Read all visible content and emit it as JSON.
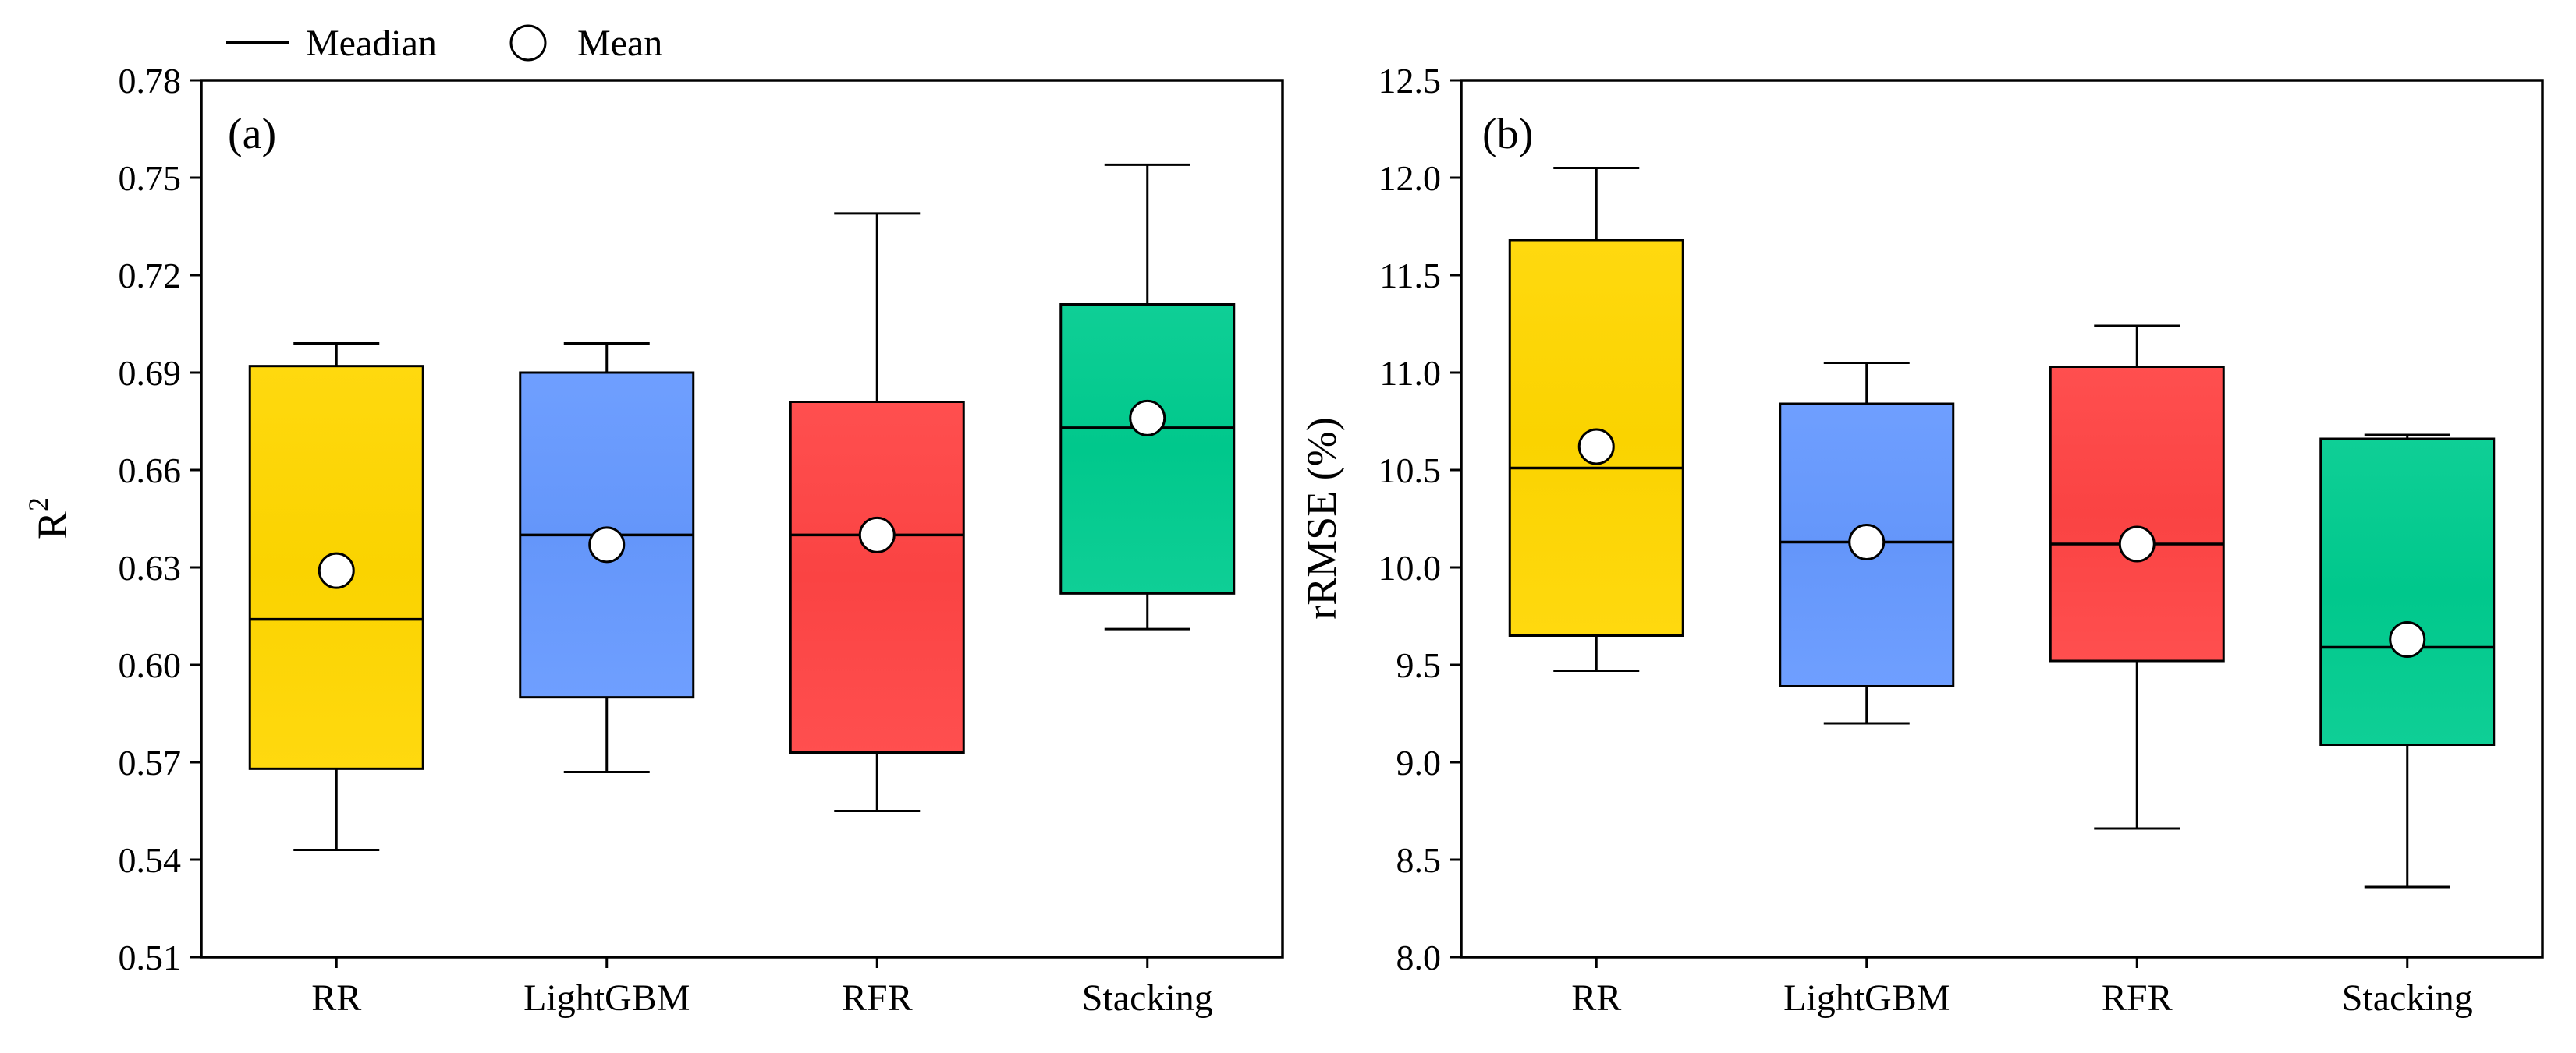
{
  "legend": {
    "median_label": "Meadian",
    "mean_label": "Mean"
  },
  "chart_data": [
    {
      "type": "boxplot",
      "panel_label": "(a)",
      "ylabel": "R",
      "ylabel_superscript": "2",
      "xlabel": "",
      "ylim": [
        0.51,
        0.78
      ],
      "yticks": [
        0.51,
        0.54,
        0.57,
        0.6,
        0.63,
        0.66,
        0.69,
        0.72,
        0.75,
        0.78
      ],
      "ytick_decimals": 2,
      "categories": [
        "RR",
        "LightGBM",
        "RFR",
        "Stacking"
      ],
      "colors": [
        "#FFD700",
        "#6699FF",
        "#FF4444",
        "#00CC8F"
      ],
      "boxes": [
        {
          "whisker_low": 0.543,
          "q1": 0.568,
          "median": 0.614,
          "q3": 0.692,
          "whisker_high": 0.699,
          "mean": 0.629
        },
        {
          "whisker_low": 0.567,
          "q1": 0.59,
          "median": 0.64,
          "q3": 0.69,
          "whisker_high": 0.699,
          "mean": 0.637
        },
        {
          "whisker_low": 0.555,
          "q1": 0.573,
          "median": 0.64,
          "q3": 0.681,
          "whisker_high": 0.739,
          "mean": 0.64
        },
        {
          "whisker_low": 0.611,
          "q1": 0.622,
          "median": 0.673,
          "q3": 0.711,
          "whisker_high": 0.754,
          "mean": 0.676
        }
      ]
    },
    {
      "type": "boxplot",
      "panel_label": "(b)",
      "ylabel": "rRMSE (%)",
      "ylabel_superscript": "",
      "xlabel": "",
      "ylim": [
        8.0,
        12.5
      ],
      "yticks": [
        8.0,
        8.5,
        9.0,
        9.5,
        10.0,
        10.5,
        11.0,
        11.5,
        12.0,
        12.5
      ],
      "ytick_decimals": 1,
      "categories": [
        "RR",
        "LightGBM",
        "RFR",
        "Stacking"
      ],
      "colors": [
        "#FFD700",
        "#6699FF",
        "#FF4444",
        "#00CC8F"
      ],
      "boxes": [
        {
          "whisker_low": 9.47,
          "q1": 9.65,
          "median": 10.51,
          "q3": 11.68,
          "whisker_high": 12.05,
          "mean": 10.62
        },
        {
          "whisker_low": 9.2,
          "q1": 9.39,
          "median": 10.13,
          "q3": 10.84,
          "whisker_high": 11.05,
          "mean": 10.13
        },
        {
          "whisker_low": 8.66,
          "q1": 9.52,
          "median": 10.12,
          "q3": 11.03,
          "whisker_high": 11.24,
          "mean": 10.12
        },
        {
          "whisker_low": 8.36,
          "q1": 9.09,
          "median": 9.59,
          "q3": 10.66,
          "whisker_high": 10.68,
          "mean": 9.63
        }
      ]
    }
  ]
}
